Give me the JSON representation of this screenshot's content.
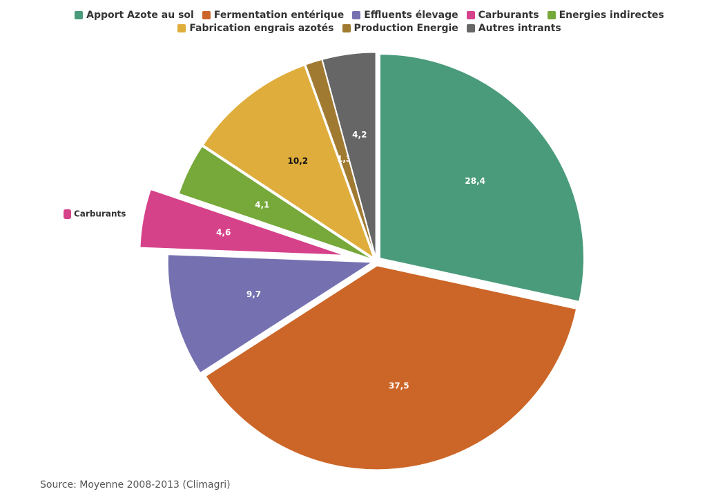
{
  "chart_data": {
    "type": "pie",
    "categories": [
      "Apport Azote au sol",
      "Fermentation entérique",
      "Effluents élevage",
      "Carburants",
      "Energies indirectes",
      "Fabrication engrais azotés",
      "Production Energie",
      "Autres intrants"
    ],
    "values": [
      28.4,
      37.5,
      9.7,
      4.6,
      4.1,
      10.2,
      1.3,
      4.2
    ],
    "value_labels": [
      "28,4",
      "37,5",
      "9,7",
      "4,6",
      "4,1",
      "10,2",
      "1,3",
      "4,2"
    ],
    "colors": [
      "#4a9b7b",
      "#cc6628",
      "#7571b0",
      "#d6428a",
      "#76a83a",
      "#dfad3c",
      "#a07a30",
      "#666666"
    ],
    "source": "Source: Moyenne 2008-2013 (Climagri)"
  }
}
